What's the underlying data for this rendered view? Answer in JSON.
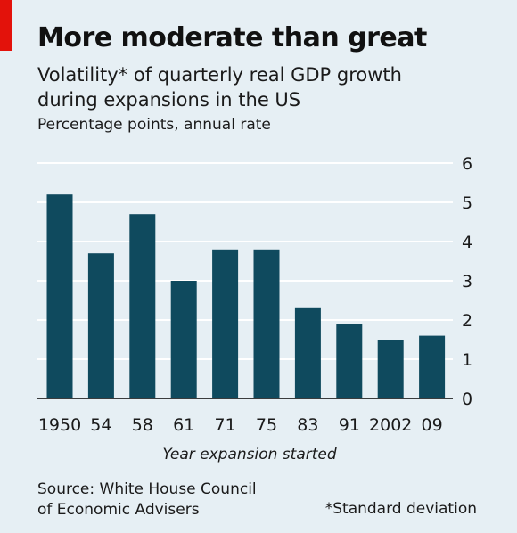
{
  "header": {
    "title": "More moderate than great",
    "subtitle_line1": "Volatility* of quarterly real GDP growth",
    "subtitle_line2": "during expansions in the US",
    "units": "Percentage points, annual rate"
  },
  "footer": {
    "source_line1": "Source: White House Council",
    "source_line2": "of Economic Advisers",
    "footnote": "*Standard deviation"
  },
  "colors": {
    "bar": "#0f4a5e",
    "gridline": "#ffffff",
    "baseline": "#000000",
    "background": "#e6eff4",
    "accent": "#e3120b"
  },
  "chart_data": {
    "type": "bar",
    "title": "More moderate than great",
    "subtitle": "Volatility* of quarterly real GDP growth during expansions in the US",
    "ylabel": "Percentage points, annual rate",
    "xlabel": "Year expansion started",
    "categories": [
      "1950",
      "54",
      "58",
      "61",
      "71",
      "75",
      "83",
      "91",
      "2002",
      "09"
    ],
    "values": [
      5.2,
      3.7,
      4.7,
      3.0,
      3.8,
      3.8,
      2.3,
      1.9,
      1.5,
      1.6
    ],
    "ylim": [
      0,
      6
    ],
    "yticks": [
      0,
      1,
      2,
      3,
      4,
      5,
      6
    ],
    "y_axis_side": "right",
    "grid": true
  }
}
